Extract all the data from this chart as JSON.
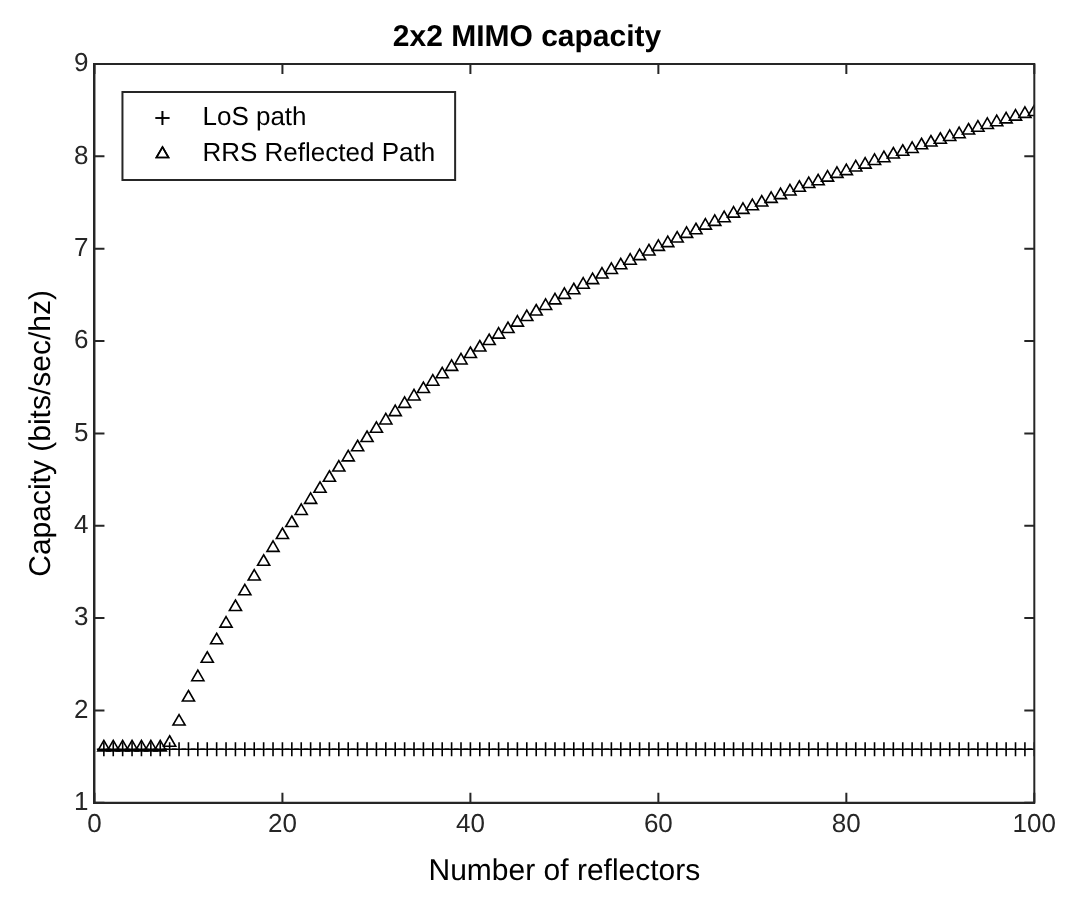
{
  "chart_data": {
    "type": "scatter",
    "title": "2x2 MIMO capacity",
    "xlabel": "Number of reflectors",
    "ylabel": "Capacity (bits/sec/hz)",
    "x": [
      1,
      2,
      3,
      4,
      5,
      6,
      7,
      8,
      9,
      10,
      11,
      12,
      13,
      14,
      15,
      16,
      17,
      18,
      19,
      20,
      21,
      22,
      23,
      24,
      25,
      26,
      27,
      28,
      29,
      30,
      31,
      32,
      33,
      34,
      35,
      36,
      37,
      38,
      39,
      40,
      41,
      42,
      43,
      44,
      45,
      46,
      47,
      48,
      49,
      50,
      51,
      52,
      53,
      54,
      55,
      56,
      57,
      58,
      59,
      60,
      61,
      62,
      63,
      64,
      65,
      66,
      67,
      68,
      69,
      70,
      71,
      72,
      73,
      74,
      75,
      76,
      77,
      78,
      79,
      80,
      81,
      82,
      83,
      84,
      85,
      86,
      87,
      88,
      89,
      90,
      91,
      92,
      93,
      94,
      95,
      96,
      97,
      98,
      99,
      100
    ],
    "series": [
      {
        "name": "LoS path",
        "color": "#000000",
        "marker": "cross",
        "values": [
          1.58,
          1.58,
          1.58,
          1.58,
          1.58,
          1.58,
          1.58,
          1.58,
          1.58,
          1.58,
          1.58,
          1.58,
          1.58,
          1.58,
          1.58,
          1.58,
          1.58,
          1.58,
          1.58,
          1.58,
          1.58,
          1.58,
          1.58,
          1.58,
          1.58,
          1.58,
          1.58,
          1.58,
          1.58,
          1.58,
          1.58,
          1.58,
          1.58,
          1.58,
          1.58,
          1.58,
          1.58,
          1.58,
          1.58,
          1.58,
          1.58,
          1.58,
          1.58,
          1.58,
          1.58,
          1.58,
          1.58,
          1.58,
          1.58,
          1.58,
          1.58,
          1.58,
          1.58,
          1.58,
          1.58,
          1.58,
          1.58,
          1.58,
          1.58,
          1.58,
          1.58,
          1.58,
          1.58,
          1.58,
          1.58,
          1.58,
          1.58,
          1.58,
          1.58,
          1.58,
          1.58,
          1.58,
          1.58,
          1.58,
          1.58,
          1.58,
          1.58,
          1.58,
          1.58,
          1.58,
          1.58,
          1.58,
          1.58,
          1.58,
          1.58,
          1.58,
          1.58,
          1.58,
          1.58,
          1.58,
          1.58,
          1.58,
          1.58,
          1.58,
          1.58,
          1.58,
          1.58,
          1.58,
          1.58,
          1.58
        ]
      },
      {
        "name": "RRS Reflected Path",
        "color": "#000000",
        "marker": "triangle",
        "values": [
          1.6,
          1.6,
          1.6,
          1.6,
          1.6,
          1.6,
          1.6,
          1.65,
          1.88,
          2.14,
          2.36,
          2.56,
          2.76,
          2.94,
          3.12,
          3.29,
          3.45,
          3.61,
          3.76,
          3.9,
          4.03,
          4.16,
          4.28,
          4.4,
          4.52,
          4.63,
          4.74,
          4.85,
          4.95,
          5.05,
          5.14,
          5.23,
          5.32,
          5.4,
          5.48,
          5.56,
          5.64,
          5.72,
          5.79,
          5.86,
          5.93,
          6.0,
          6.07,
          6.13,
          6.2,
          6.26,
          6.32,
          6.38,
          6.44,
          6.5,
          6.55,
          6.61,
          6.66,
          6.72,
          6.77,
          6.82,
          6.87,
          6.92,
          6.97,
          7.02,
          7.06,
          7.11,
          7.16,
          7.2,
          7.25,
          7.29,
          7.33,
          7.38,
          7.42,
          7.46,
          7.5,
          7.54,
          7.58,
          7.62,
          7.66,
          7.7,
          7.73,
          7.77,
          7.81,
          7.84,
          7.88,
          7.91,
          7.95,
          7.98,
          8.02,
          8.05,
          8.08,
          8.12,
          8.15,
          8.18,
          8.21,
          8.24,
          8.28,
          8.31,
          8.34,
          8.37,
          8.4,
          8.43,
          8.46,
          8.48
        ]
      }
    ],
    "xlim": [
      0,
      100
    ],
    "xticks": [
      0,
      20,
      40,
      60,
      80,
      100
    ],
    "ylim": [
      1,
      9
    ],
    "yticks": [
      1,
      2,
      3,
      4,
      5,
      6,
      7,
      8,
      9
    ],
    "grid": false,
    "legend": "top left"
  }
}
